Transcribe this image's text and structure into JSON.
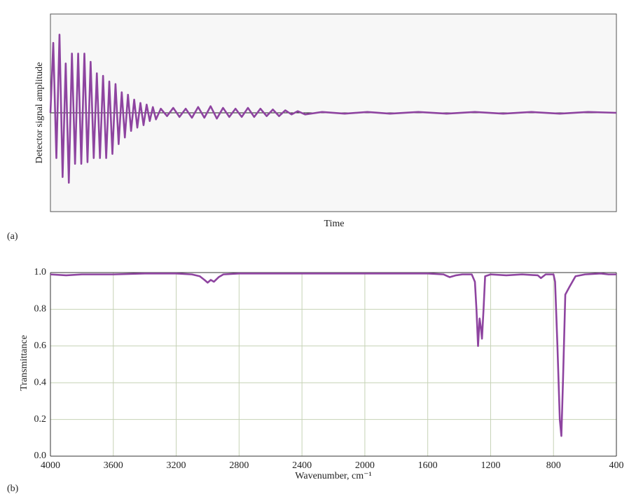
{
  "chart_data": [
    {
      "type": "line",
      "panel_label": "(a)",
      "ylabel": "Detector signal amplitude",
      "xlabel": "Time",
      "color": "#8e44a0",
      "xlim": [
        0,
        100
      ],
      "ylim": [
        -1.2,
        1.2
      ],
      "x": [
        0,
        0.5,
        1.05,
        1.6,
        2.15,
        2.7,
        3.25,
        3.8,
        4.35,
        4.9,
        5.45,
        6.0,
        6.55,
        7.1,
        7.65,
        8.2,
        8.75,
        9.3,
        9.85,
        10.4,
        10.95,
        11.5,
        12.05,
        12.6,
        13.15,
        13.7,
        14.25,
        14.8,
        15.35,
        15.9,
        16.45,
        17.0,
        17.55,
        18.1,
        18.65,
        19.5,
        20.6,
        21.7,
        22.8,
        23.9,
        25.0,
        26.1,
        27.2,
        28.3,
        29.4,
        30.5,
        31.6,
        32.7,
        33.8,
        34.9,
        36.0,
        37.1,
        38.2,
        39.3,
        40.4,
        41.5,
        42.6,
        43.7,
        45,
        48,
        52,
        56,
        60,
        65,
        70,
        75,
        80,
        85,
        90,
        95,
        100
      ],
      "values": [
        0,
        0.85,
        -0.55,
        0.95,
        -0.78,
        0.6,
        -0.85,
        0.72,
        -0.62,
        0.72,
        -0.62,
        0.72,
        -0.6,
        0.62,
        -0.55,
        0.48,
        -0.55,
        0.45,
        -0.55,
        0.38,
        -0.5,
        0.35,
        -0.38,
        0.25,
        -0.3,
        0.22,
        -0.22,
        0.16,
        -0.18,
        0.12,
        -0.15,
        0.1,
        -0.1,
        0.07,
        -0.08,
        0.05,
        -0.04,
        0.06,
        -0.05,
        0.05,
        -0.06,
        0.07,
        -0.06,
        0.08,
        -0.07,
        0.06,
        -0.05,
        0.05,
        -0.05,
        0.06,
        -0.05,
        0.05,
        -0.04,
        0.04,
        -0.04,
        0.03,
        -0.02,
        0.02,
        -0.02,
        0.01,
        -0.01,
        0.01,
        -0.01,
        0.01,
        -0.01,
        0.01,
        -0.01,
        0.01,
        -0.01,
        0.01,
        0
      ]
    },
    {
      "type": "line",
      "panel_label": "(b)",
      "ylabel": "Transmittance",
      "xlabel": "Wavenumber, cm⁻¹",
      "color": "#8e44a0",
      "grid": true,
      "xlim": [
        4000,
        400
      ],
      "ylim": [
        0,
        1
      ],
      "xticks": [
        4000,
        3600,
        3200,
        2800,
        2400,
        2000,
        1600,
        1200,
        800,
        400
      ],
      "yticks": [
        {
          "value": 0,
          "label": "0.0"
        },
        0.2,
        0.4,
        0.6,
        0.8,
        {
          "value": 1,
          "label": "1.0"
        }
      ],
      "x": [
        4000,
        3900,
        3800,
        3600,
        3400,
        3200,
        3100,
        3050,
        3020,
        3000,
        2980,
        2960,
        2930,
        2900,
        2800,
        2400,
        2000,
        1600,
        1500,
        1460,
        1420,
        1380,
        1320,
        1300,
        1290,
        1280,
        1270,
        1262,
        1255,
        1245,
        1235,
        1200,
        1100,
        1000,
        900,
        880,
        850,
        800,
        790,
        775,
        760,
        750,
        740,
        725,
        700,
        660,
        600,
        500,
        450,
        400
      ],
      "values": [
        0.99,
        0.985,
        0.99,
        0.99,
        0.995,
        0.995,
        0.99,
        0.98,
        0.96,
        0.945,
        0.96,
        0.95,
        0.975,
        0.99,
        0.995,
        0.995,
        0.995,
        0.995,
        0.99,
        0.975,
        0.985,
        0.99,
        0.99,
        0.95,
        0.8,
        0.6,
        0.75,
        0.7,
        0.64,
        0.8,
        0.98,
        0.99,
        0.985,
        0.99,
        0.985,
        0.97,
        0.99,
        0.99,
        0.95,
        0.6,
        0.2,
        0.11,
        0.4,
        0.88,
        0.92,
        0.98,
        0.99,
        0.995,
        0.99,
        0.99
      ]
    }
  ]
}
